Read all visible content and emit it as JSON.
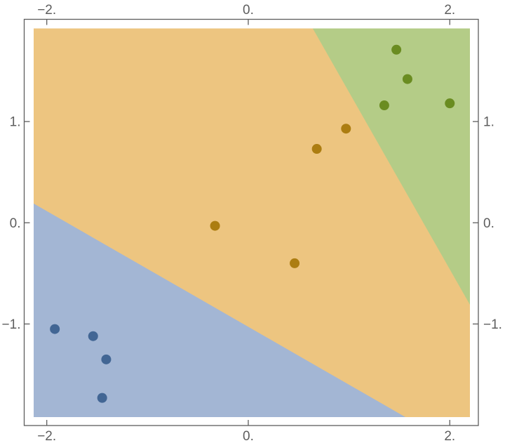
{
  "figure": {
    "title": "",
    "background_color": "#ffffff",
    "frame_color": "#5e5e5e",
    "tick_label_color": "#5e5e5e"
  },
  "chart_data": {
    "type": "scatter",
    "subtype": "decision-regions",
    "description": "Three-class classifier decision regions (blue, orange, green) with four data points per class",
    "region_x_range": [
      -2.13,
      2.2
    ],
    "region_y_range": [
      -1.92,
      1.92
    ],
    "grid": false,
    "legend": null,
    "xlabel": "",
    "ylabel": "",
    "x_ticks": [
      {
        "v": -2,
        "label": "−2."
      },
      {
        "v": 0,
        "label": "0."
      },
      {
        "v": 2,
        "label": "2."
      }
    ],
    "y_ticks": [
      {
        "v": 1,
        "label": "1."
      },
      {
        "v": 0,
        "label": "0."
      },
      {
        "v": -1,
        "label": "−1."
      }
    ],
    "regions": {
      "base": {
        "name": "orange-region",
        "class": "class-2",
        "color": "#edc580"
      },
      "overlays": [
        {
          "name": "blue-region",
          "class": "class-1",
          "color": "#a3b6d4",
          "polygon": [
            [
              -2.13,
              0.19
            ],
            [
              -2.13,
              -1.92
            ],
            [
              1.56,
              -1.92
            ]
          ]
        },
        {
          "name": "green-region",
          "class": "class-3",
          "color": "#b4cc87",
          "polygon": [
            [
              0.64,
              1.92
            ],
            [
              2.2,
              1.92
            ],
            [
              2.2,
              -0.81
            ]
          ]
        }
      ]
    },
    "boundaries": [
      {
        "between": [
          "class-1",
          "class-2"
        ],
        "line_equation": "y = -0.571x - 1.03"
      },
      {
        "between": [
          "class-2",
          "class-3"
        ],
        "line_equation": "y = -1.75x + 3.04"
      }
    ],
    "series": [
      {
        "name": "class-1-blue",
        "color": "#426694",
        "marker": "circle",
        "marker_radius": 7,
        "points": [
          [
            -1.92,
            -1.05
          ],
          [
            -1.54,
            -1.12
          ],
          [
            -1.41,
            -1.35
          ],
          [
            -1.45,
            -1.73
          ]
        ]
      },
      {
        "name": "class-2-orange",
        "color": "#ac7d11",
        "marker": "circle",
        "marker_radius": 7,
        "points": [
          [
            -0.33,
            -0.03
          ],
          [
            0.46,
            -0.4
          ],
          [
            0.68,
            0.73
          ],
          [
            0.97,
            0.93
          ]
        ]
      },
      {
        "name": "class-3-green",
        "color": "#6a8c21",
        "marker": "circle",
        "marker_radius": 7,
        "points": [
          [
            1.47,
            1.71
          ],
          [
            1.58,
            1.42
          ],
          [
            1.35,
            1.16
          ],
          [
            2.0,
            1.18
          ]
        ]
      }
    ]
  }
}
